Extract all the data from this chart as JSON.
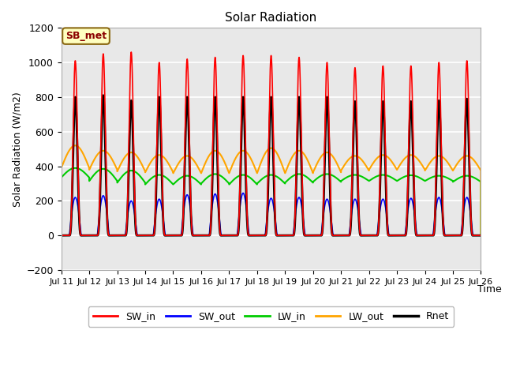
{
  "title": "Solar Radiation",
  "ylabel": "Solar Radiation (W/m2)",
  "xlabel": "Time",
  "ylim": [
    -200,
    1200
  ],
  "yticks": [
    -200,
    0,
    200,
    400,
    600,
    800,
    1000,
    1200
  ],
  "xlim": [
    0,
    15
  ],
  "xtick_labels": [
    "Jul 11",
    "Jul 12",
    "Jul 13",
    "Jul 14",
    "Jul 15",
    "Jul 16",
    "Jul 17",
    "Jul 18",
    "Jul 19",
    "Jul 20",
    "Jul 21",
    "Jul 22",
    "Jul 23",
    "Jul 24",
    "Jul 25",
    "Jul 26"
  ],
  "annotation_text": "SB_met",
  "annotation_color": "#8B0000",
  "annotation_bg": "#FFFFC0",
  "annotation_edge": "#8B6914",
  "fig_bg": "#FFFFFF",
  "plot_bg": "#E8E8E8",
  "grid_color": "#FFFFFF",
  "colors": {
    "SW_in": "#FF0000",
    "SW_out": "#0000FF",
    "LW_in": "#00CC00",
    "LW_out": "#FFA500",
    "Rnet": "#000000"
  },
  "linewidths": {
    "SW_in": 1.2,
    "SW_out": 1.2,
    "LW_in": 1.5,
    "LW_out": 1.5,
    "Rnet": 2.0
  },
  "n_days": 15,
  "pts_per_day": 1440,
  "SW_in_peak": [
    1010,
    1050,
    1060,
    1000,
    1020,
    1030,
    1040,
    1040,
    1030,
    1000,
    970,
    980,
    980,
    1000,
    1010
  ],
  "SW_out_peak": [
    220,
    230,
    200,
    210,
    235,
    240,
    245,
    215,
    220,
    210,
    210,
    210,
    215,
    220,
    220
  ],
  "LW_in_base": [
    335,
    315,
    305,
    295,
    295,
    300,
    295,
    300,
    305,
    310,
    315,
    315,
    315,
    315,
    310
  ],
  "LW_in_peak": [
    390,
    385,
    375,
    350,
    345,
    355,
    350,
    350,
    355,
    355,
    350,
    350,
    348,
    345,
    345
  ],
  "LW_out_base": [
    390,
    380,
    370,
    365,
    360,
    360,
    360,
    360,
    360,
    365,
    375,
    380,
    380,
    375,
    375
  ],
  "LW_out_peak": [
    520,
    490,
    480,
    465,
    460,
    490,
    490,
    505,
    490,
    480,
    460,
    465,
    465,
    460,
    460
  ],
  "Rnet_peak": [
    800,
    810,
    780,
    800,
    800,
    800,
    800,
    800,
    800,
    800,
    775,
    775,
    775,
    780,
    790
  ]
}
